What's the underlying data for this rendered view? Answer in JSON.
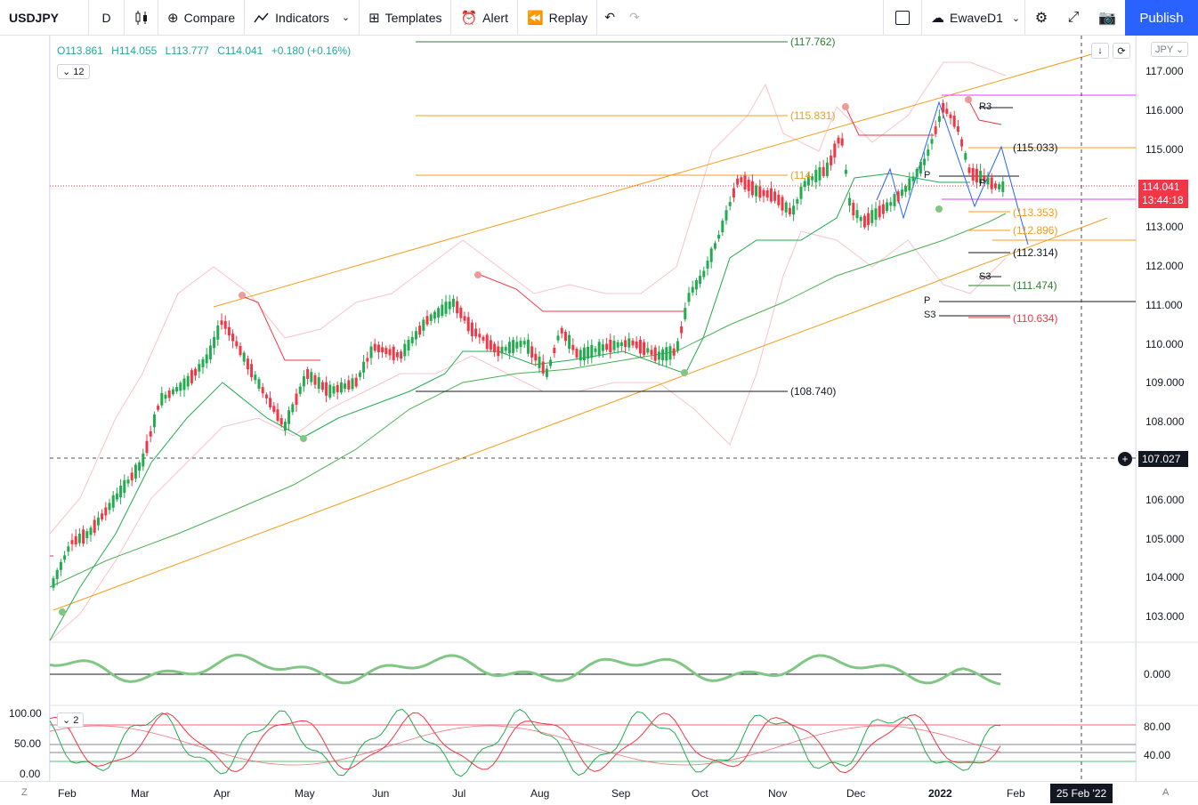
{
  "toolbar": {
    "symbol": "USDJPY",
    "interval": "D",
    "compare_label": "Compare",
    "indicators_label": "Indicators",
    "templates_label": "Templates",
    "alert_label": "Alert",
    "replay_label": "Replay",
    "layout_name": "EwaveD1",
    "publish_label": "Publish"
  },
  "legend": {
    "open": "O113.861",
    "high": "H114.055",
    "low": "L113.777",
    "close": "C114.041",
    "change": "+0.180 (+0.16%)",
    "collapse_count": "12"
  },
  "osc2_collapse_count": "2",
  "currency_button": "JPY",
  "price_scale": [
    "117.000",
    "116.000",
    "115.000",
    "114.000",
    "113.000",
    "112.000",
    "111.000",
    "110.000",
    "109.000",
    "108.000",
    "107.000",
    "106.000",
    "105.000",
    "104.000",
    "103.000"
  ],
  "current_price": "114.041",
  "countdown": "13:44:18",
  "crosshair_price": "107.027",
  "osc1_scale": [
    "0.000"
  ],
  "osc2_left_scale": [
    "100.00",
    "50.00",
    "0.00"
  ],
  "osc2_right_scale": [
    "80.00",
    "40.00"
  ],
  "time_axis": {
    "months": [
      "Feb",
      "Mar",
      "Apr",
      "May",
      "Jun",
      "Jul",
      "Aug",
      "Sep",
      "Oct",
      "Nov",
      "Dec",
      "2022",
      "Feb"
    ],
    "crosshair_date": "25 Feb '22",
    "left_btn": "Z",
    "right_btn": "A"
  },
  "levels": [
    {
      "label": "(117.762)"
    },
    {
      "label": "(115.831)"
    },
    {
      "label": "(114"
    },
    {
      "label": "(108.740)"
    },
    {
      "label": "(115.033)"
    },
    {
      "label": "(113.353)"
    },
    {
      "label": "(112.896)"
    },
    {
      "label": "(112.314)"
    },
    {
      "label": "(111.474)"
    },
    {
      "label": "(110.634)"
    }
  ],
  "pivot_labels": {
    "r3": "R3",
    "p1": "P",
    "p2": "P",
    "s3a": "S3",
    "p3": "P",
    "s3b": "S3"
  },
  "colors": {
    "up": "#22ab4f",
    "down": "#f23645",
    "orange": "#f59c1a",
    "magenta": "#e040fb",
    "accent": "#2962ff"
  }
}
